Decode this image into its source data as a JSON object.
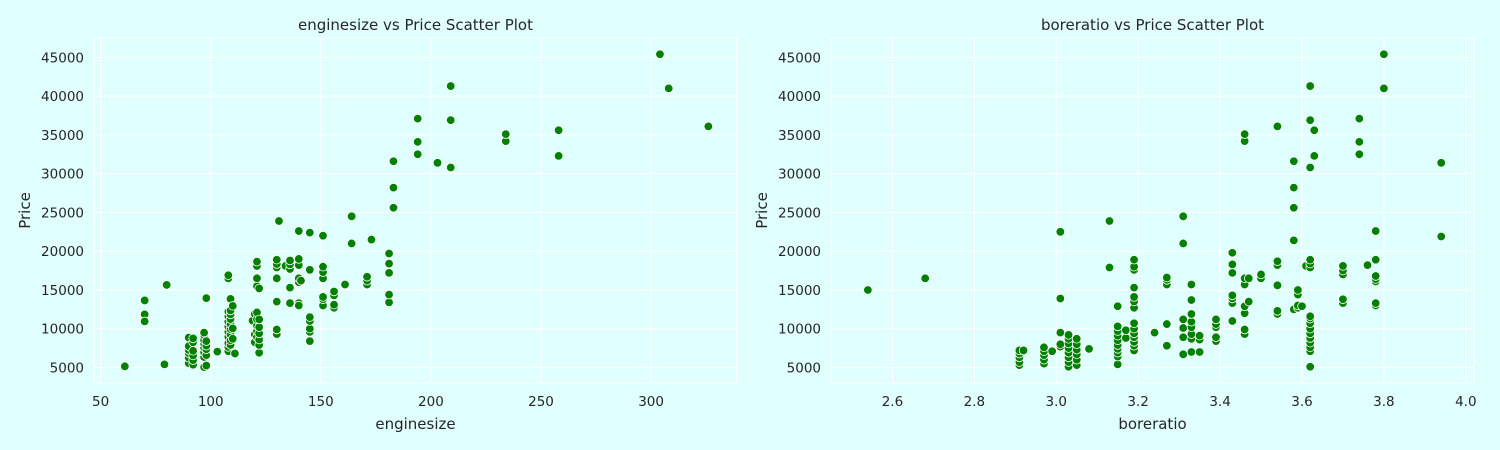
{
  "figure": {
    "background": "#e0ffff",
    "point_color": "#008000"
  },
  "chart_data": [
    {
      "type": "scatter",
      "title": "enginesize vs Price Scatter Plot",
      "xlabel": "enginesize",
      "ylabel": "Price",
      "xlim": [
        47,
        339
      ],
      "ylim": [
        3000,
        47500
      ],
      "xticks": [
        50,
        100,
        150,
        200,
        250,
        300
      ],
      "xtick_labels": [
        "50",
        "100",
        "150",
        "200",
        "250",
        "300"
      ],
      "yticks": [
        5000,
        10000,
        15000,
        20000,
        25000,
        30000,
        35000,
        40000,
        45000
      ],
      "ytick_labels": [
        "5000",
        "10000",
        "15000",
        "20000",
        "25000",
        "30000",
        "35000",
        "40000",
        "45000"
      ],
      "grid": true,
      "points": [
        [
          61,
          5150
        ],
        [
          70,
          13650
        ],
        [
          70,
          11850
        ],
        [
          70,
          10950
        ],
        [
          79,
          5400
        ],
        [
          80,
          15650
        ],
        [
          90,
          5550
        ],
        [
          90,
          6250
        ],
        [
          90,
          6850
        ],
        [
          90,
          7250
        ],
        [
          90,
          7750
        ],
        [
          90,
          8850
        ],
        [
          92,
          5350
        ],
        [
          92,
          5950
        ],
        [
          92,
          6550
        ],
        [
          92,
          7150
        ],
        [
          92,
          8250
        ],
        [
          92,
          8750
        ],
        [
          97,
          5050
        ],
        [
          97,
          6350
        ],
        [
          97,
          6950
        ],
        [
          97,
          7550
        ],
        [
          97,
          8100
        ],
        [
          97,
          8550
        ],
        [
          97,
          9200
        ],
        [
          97,
          9500
        ],
        [
          98,
          5250
        ],
        [
          98,
          6600
        ],
        [
          98,
          7350
        ],
        [
          98,
          7800
        ],
        [
          98,
          8400
        ],
        [
          98,
          13950
        ],
        [
          103,
          7050
        ],
        [
          108,
          7100
        ],
        [
          108,
          7650
        ],
        [
          108,
          8150
        ],
        [
          108,
          8950
        ],
        [
          108,
          9600
        ],
        [
          108,
          10250
        ],
        [
          108,
          10900
        ],
        [
          108,
          11600
        ],
        [
          108,
          12200
        ],
        [
          108,
          16500
        ],
        [
          108,
          16900
        ],
        [
          109,
          7900
        ],
        [
          109,
          8500
        ],
        [
          109,
          9250
        ],
        [
          109,
          9950
        ],
        [
          109,
          10600
        ],
        [
          109,
          11250
        ],
        [
          109,
          11850
        ],
        [
          109,
          12350
        ],
        [
          109,
          13850
        ],
        [
          110,
          8700
        ],
        [
          110,
          10050
        ],
        [
          110,
          12950
        ],
        [
          111,
          6800
        ],
        [
          119,
          11050
        ],
        [
          120,
          8250
        ],
        [
          120,
          9250
        ],
        [
          120,
          11900
        ],
        [
          121,
          8900
        ],
        [
          121,
          9700
        ],
        [
          121,
          10400
        ],
        [
          121,
          11200
        ],
        [
          121,
          12100
        ],
        [
          121,
          15500
        ],
        [
          121,
          16500
        ],
        [
          121,
          18100
        ],
        [
          121,
          18650
        ],
        [
          122,
          6900
        ],
        [
          122,
          7900
        ],
        [
          122,
          8600
        ],
        [
          122,
          9400
        ],
        [
          122,
          10200
        ],
        [
          122,
          11200
        ],
        [
          122,
          15200
        ],
        [
          130,
          9300
        ],
        [
          130,
          9900
        ],
        [
          130,
          13500
        ],
        [
          130,
          16500
        ],
        [
          130,
          17900
        ],
        [
          130,
          18350
        ],
        [
          130,
          18900
        ],
        [
          131,
          23900
        ],
        [
          134,
          18100
        ],
        [
          136,
          13300
        ],
        [
          136,
          15300
        ],
        [
          136,
          17700
        ],
        [
          136,
          18300
        ],
        [
          136,
          18800
        ],
        [
          140,
          13300
        ],
        [
          140,
          13000
        ],
        [
          140,
          16000
        ],
        [
          140,
          16500
        ],
        [
          140,
          18200
        ],
        [
          140,
          19000
        ],
        [
          140,
          22600
        ],
        [
          141,
          16200
        ],
        [
          145,
          8400
        ],
        [
          145,
          9600
        ],
        [
          145,
          10000
        ],
        [
          145,
          11000
        ],
        [
          145,
          11500
        ],
        [
          145,
          17600
        ],
        [
          145,
          22400
        ],
        [
          151,
          13000
        ],
        [
          151,
          13800
        ],
        [
          151,
          14100
        ],
        [
          151,
          16500
        ],
        [
          151,
          17300
        ],
        [
          151,
          18000
        ],
        [
          151,
          22000
        ],
        [
          156,
          12700
        ],
        [
          156,
          13100
        ],
        [
          156,
          14300
        ],
        [
          156,
          14800
        ],
        [
          161,
          15700
        ],
        [
          164,
          21000
        ],
        [
          164,
          24500
        ],
        [
          171,
          15700
        ],
        [
          171,
          16200
        ],
        [
          171,
          16700
        ],
        [
          173,
          21500
        ],
        [
          181,
          13400
        ],
        [
          181,
          14400
        ],
        [
          181,
          17200
        ],
        [
          181,
          18400
        ],
        [
          181,
          19700
        ],
        [
          183,
          25600
        ],
        [
          183,
          28200
        ],
        [
          183,
          31600
        ],
        [
          194,
          32500
        ],
        [
          194,
          34100
        ],
        [
          194,
          37100
        ],
        [
          203,
          31400
        ],
        [
          209,
          30800
        ],
        [
          209,
          36900
        ],
        [
          209,
          41300
        ],
        [
          234,
          34200
        ],
        [
          234,
          35100
        ],
        [
          258,
          32300
        ],
        [
          258,
          35600
        ],
        [
          304,
          45400
        ],
        [
          308,
          41000
        ],
        [
          326,
          36100
        ]
      ]
    },
    {
      "type": "scatter",
      "title": "boreratio vs Price Scatter Plot",
      "xlabel": "boreratio",
      "ylabel": "Price",
      "xlim": [
        2.45,
        4.02
      ],
      "ylim": [
        3000,
        47500
      ],
      "xticks": [
        2.6,
        2.8,
        3.0,
        3.2,
        3.4,
        3.6,
        3.8,
        4.0
      ],
      "xtick_labels": [
        "2.6",
        "2.8",
        "3.0",
        "3.2",
        "3.4",
        "3.6",
        "3.8",
        "4.0"
      ],
      "yticks": [
        5000,
        10000,
        15000,
        20000,
        25000,
        30000,
        35000,
        40000,
        45000
      ],
      "ytick_labels": [
        "5000",
        "10000",
        "15000",
        "20000",
        "25000",
        "30000",
        "35000",
        "40000",
        "45000"
      ],
      "grid": true,
      "points": [
        [
          2.54,
          15000
        ],
        [
          2.68,
          16500
        ],
        [
          2.91,
          5300
        ],
        [
          2.91,
          5700
        ],
        [
          2.91,
          6300
        ],
        [
          2.91,
          6800
        ],
        [
          2.91,
          7200
        ],
        [
          2.92,
          7200
        ],
        [
          2.97,
          5500
        ],
        [
          2.97,
          6000
        ],
        [
          2.97,
          6600
        ],
        [
          2.97,
          7100
        ],
        [
          2.97,
          7600
        ],
        [
          2.99,
          7100
        ],
        [
          3.01,
          7700
        ],
        [
          3.01,
          8000
        ],
        [
          3.01,
          9500
        ],
        [
          3.01,
          13900
        ],
        [
          3.01,
          22500
        ],
        [
          3.03,
          5100
        ],
        [
          3.03,
          5700
        ],
        [
          3.03,
          6300
        ],
        [
          3.03,
          6900
        ],
        [
          3.03,
          7500
        ],
        [
          3.03,
          8100
        ],
        [
          3.03,
          8700
        ],
        [
          3.03,
          9200
        ],
        [
          3.05,
          5300
        ],
        [
          3.05,
          6000
        ],
        [
          3.05,
          6700
        ],
        [
          3.05,
          7300
        ],
        [
          3.05,
          8000
        ],
        [
          3.05,
          8700
        ],
        [
          3.08,
          7400
        ],
        [
          3.13,
          17900
        ],
        [
          3.13,
          23900
        ],
        [
          3.15,
          5400
        ],
        [
          3.15,
          6400
        ],
        [
          3.15,
          6900
        ],
        [
          3.15,
          7400
        ],
        [
          3.15,
          7900
        ],
        [
          3.15,
          8500
        ],
        [
          3.15,
          9100
        ],
        [
          3.15,
          9700
        ],
        [
          3.15,
          10300
        ],
        [
          3.15,
          12900
        ],
        [
          3.17,
          8800
        ],
        [
          3.17,
          9800
        ],
        [
          3.19,
          7200
        ],
        [
          3.19,
          7800
        ],
        [
          3.19,
          8300
        ],
        [
          3.19,
          8900
        ],
        [
          3.19,
          9400
        ],
        [
          3.19,
          10000
        ],
        [
          3.19,
          10700
        ],
        [
          3.19,
          12700
        ],
        [
          3.19,
          13500
        ],
        [
          3.19,
          14100
        ],
        [
          3.19,
          15300
        ],
        [
          3.19,
          17600
        ],
        [
          3.19,
          18000
        ],
        [
          3.19,
          18900
        ],
        [
          3.24,
          9500
        ],
        [
          3.27,
          7800
        ],
        [
          3.27,
          10600
        ],
        [
          3.27,
          15700
        ],
        [
          3.27,
          16300
        ],
        [
          3.27,
          16600
        ],
        [
          3.31,
          6700
        ],
        [
          3.31,
          8900
        ],
        [
          3.31,
          10100
        ],
        [
          3.31,
          11200
        ],
        [
          3.31,
          21000
        ],
        [
          3.31,
          24500
        ],
        [
          3.33,
          7000
        ],
        [
          3.33,
          8700
        ],
        [
          3.33,
          9300
        ],
        [
          3.33,
          10200
        ],
        [
          3.33,
          10900
        ],
        [
          3.33,
          11900
        ],
        [
          3.33,
          13700
        ],
        [
          3.33,
          15700
        ],
        [
          3.35,
          7000
        ],
        [
          3.35,
          8600
        ],
        [
          3.35,
          9100
        ],
        [
          3.39,
          8400
        ],
        [
          3.39,
          8900
        ],
        [
          3.39,
          10200
        ],
        [
          3.39,
          10600
        ],
        [
          3.39,
          11200
        ],
        [
          3.43,
          11000
        ],
        [
          3.43,
          13300
        ],
        [
          3.43,
          13900
        ],
        [
          3.43,
          14300
        ],
        [
          3.43,
          17200
        ],
        [
          3.43,
          18300
        ],
        [
          3.43,
          19800
        ],
        [
          3.46,
          9300
        ],
        [
          3.46,
          9900
        ],
        [
          3.46,
          12000
        ],
        [
          3.46,
          12900
        ],
        [
          3.46,
          15700
        ],
        [
          3.46,
          16500
        ],
        [
          3.46,
          34200
        ],
        [
          3.46,
          35100
        ],
        [
          3.47,
          13500
        ],
        [
          3.47,
          16500
        ],
        [
          3.5,
          16500
        ],
        [
          3.5,
          17000
        ],
        [
          3.54,
          11900
        ],
        [
          3.54,
          12300
        ],
        [
          3.54,
          15600
        ],
        [
          3.54,
          18200
        ],
        [
          3.54,
          18700
        ],
        [
          3.54,
          36100
        ],
        [
          3.58,
          12500
        ],
        [
          3.58,
          21400
        ],
        [
          3.58,
          25600
        ],
        [
          3.58,
          28200
        ],
        [
          3.58,
          31600
        ],
        [
          3.59,
          12700
        ],
        [
          3.59,
          13000
        ],
        [
          3.59,
          14400
        ],
        [
          3.59,
          15000
        ],
        [
          3.6,
          12900
        ],
        [
          3.61,
          18100
        ],
        [
          3.62,
          5100
        ],
        [
          3.62,
          7100
        ],
        [
          3.62,
          7600
        ],
        [
          3.62,
          8200
        ],
        [
          3.62,
          8800
        ],
        [
          3.62,
          9400
        ],
        [
          3.62,
          10000
        ],
        [
          3.62,
          10700
        ],
        [
          3.62,
          11300
        ],
        [
          3.62,
          11600
        ],
        [
          3.62,
          17900
        ],
        [
          3.62,
          18400
        ],
        [
          3.62,
          18900
        ],
        [
          3.62,
          30800
        ],
        [
          3.62,
          36900
        ],
        [
          3.62,
          41300
        ],
        [
          3.63,
          32300
        ],
        [
          3.63,
          35600
        ],
        [
          3.7,
          13300
        ],
        [
          3.7,
          13800
        ],
        [
          3.7,
          17000
        ],
        [
          3.7,
          17500
        ],
        [
          3.7,
          18100
        ],
        [
          3.74,
          32500
        ],
        [
          3.74,
          34100
        ],
        [
          3.74,
          37100
        ],
        [
          3.76,
          18200
        ],
        [
          3.78,
          13000
        ],
        [
          3.78,
          13300
        ],
        [
          3.78,
          16100
        ],
        [
          3.78,
          16400
        ],
        [
          3.78,
          16800
        ],
        [
          3.78,
          18900
        ],
        [
          3.78,
          22600
        ],
        [
          3.8,
          41000
        ],
        [
          3.8,
          45400
        ],
        [
          3.94,
          21900
        ],
        [
          3.94,
          31400
        ]
      ]
    }
  ]
}
